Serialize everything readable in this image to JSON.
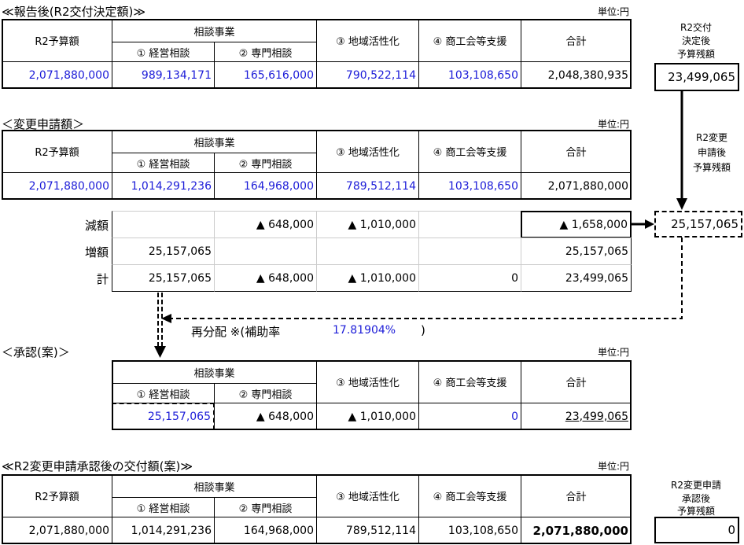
{
  "tables": [
    {
      "title": "≪報告後(R2交付決定額)≫",
      "unit": "単位:円",
      "group": "相談事業",
      "columns": [
        "R2予算額",
        "① 経営相談",
        "② 専門相談",
        "③ 地域活性化",
        "④ 商工会等支援",
        "合計"
      ],
      "values": [
        "2,071,880,000",
        "989,134,171",
        "165,616,000",
        "790,522,114",
        "103,108,650",
        "2,048,380,935"
      ]
    },
    {
      "title": "＜変更申請額＞",
      "unit": "単位:円",
      "group": "相談事業",
      "columns": [
        "R2予算額",
        "① 経営相談",
        "② 専門相談",
        "③ 地域活性化",
        "④ 商工会等支援",
        "合計"
      ],
      "values": [
        "2,071,880,000",
        "1,014,291,236",
        "164,968,000",
        "789,512,114",
        "103,108,650",
        "2,071,880,000"
      ]
    },
    {
      "title": "＜承認(案)＞",
      "unit": "単位:円",
      "group": "相談事業",
      "columns": [
        "① 経営相談",
        "② 専門相談",
        "③ 地域活性化",
        "④ 商工会等支援",
        "合計"
      ],
      "values": [
        "25,157,065",
        "▲ 648,000",
        "▲ 1,010,000",
        "0",
        "23,499,065"
      ]
    },
    {
      "title": "≪R2変更申請承認後の交付額(案)≫",
      "unit": "単位:円",
      "group": "相談事業",
      "columns": [
        "R2予算額",
        "① 経営相談",
        "② 専門相談",
        "③ 地域活性化",
        "④ 商工会等支援",
        "合計"
      ],
      "values": [
        "2,071,880,000",
        "1,014,291,236",
        "164,968,000",
        "789,512,114",
        "103,108,650",
        "2,071,880,000"
      ]
    }
  ],
  "adjustments": [
    {
      "label": "減額",
      "cells": [
        null,
        "▲ 648,000",
        "▲ 1,010,000",
        null,
        "▲ 1,658,000"
      ]
    },
    {
      "label": "増額",
      "cells": [
        "25,157,065",
        null,
        null,
        null,
        "25,157,065"
      ]
    },
    {
      "label": "計",
      "cells": [
        "25,157,065",
        "▲ 648,000",
        "▲ 1,010,000",
        "0",
        "23,499,065"
      ]
    }
  ],
  "side": [
    {
      "label": [
        "R2交付",
        "決定後",
        "予算残額"
      ],
      "value": "23,499,065"
    },
    {
      "label": [
        "R2変更",
        "申請後",
        "予算残額"
      ],
      "value": "25,157,065"
    },
    {
      "label": [
        "R2変更申請",
        "承認後",
        "予算残額"
      ],
      "value": "0"
    }
  ],
  "redistribution": {
    "label": "再分配 ※(補助率",
    "rate": "17.81904%",
    "close": ")"
  }
}
